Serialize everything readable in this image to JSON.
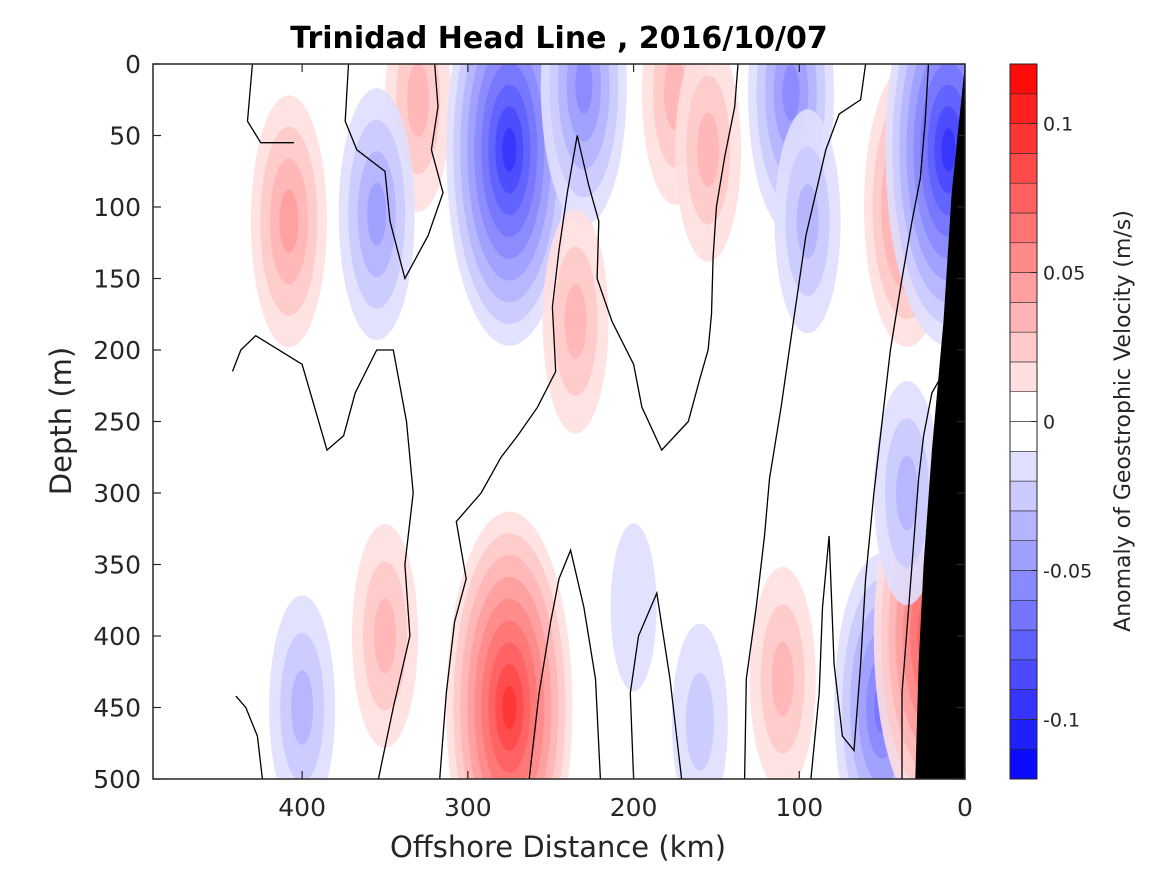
{
  "chart_data": {
    "type": "heatmap",
    "title": "Trinidad Head Line , 2016/10/07",
    "xlabel": "Offshore Distance (km)",
    "ylabel": "Depth (m)",
    "x_reversed": true,
    "y_reversed": true,
    "xlim": [
      490,
      0
    ],
    "ylim": [
      0,
      500
    ],
    "x_ticks": [
      {
        "value": 400,
        "label": "400"
      },
      {
        "value": 300,
        "label": "300"
      },
      {
        "value": 200,
        "label": "200"
      },
      {
        "value": 100,
        "label": "100"
      },
      {
        "value": 0,
        "label": "0"
      }
    ],
    "y_ticks": [
      {
        "value": 0,
        "label": "0"
      },
      {
        "value": 50,
        "label": "50"
      },
      {
        "value": 100,
        "label": "100"
      },
      {
        "value": 150,
        "label": "150"
      },
      {
        "value": 200,
        "label": "200"
      },
      {
        "value": 250,
        "label": "250"
      },
      {
        "value": 300,
        "label": "300"
      },
      {
        "value": 350,
        "label": "350"
      },
      {
        "value": 400,
        "label": "400"
      },
      {
        "value": 450,
        "label": "450"
      },
      {
        "value": 500,
        "label": "500"
      }
    ],
    "colorbar": {
      "label": "Anomaly of Geostrophic Velocity (m/s)",
      "range": [
        -0.12,
        0.12
      ],
      "level_step": 0.01,
      "zero_band": [
        -0.01,
        0.01
      ],
      "negative_color": "#0000ff",
      "positive_color": "#ff0000",
      "ticks": [
        {
          "value": 0.1,
          "label": "0.1"
        },
        {
          "value": 0.05,
          "label": "0.05"
        },
        {
          "value": 0,
          "label": "0"
        },
        {
          "value": -0.05,
          "label": "-0.05"
        },
        {
          "value": -0.1,
          "label": "-0.1"
        }
      ]
    },
    "bottom_mask_color": "#000000",
    "shelf_bottom": [
      [
        0,
        0
      ],
      [
        8,
        90
      ],
      [
        13,
        180
      ],
      [
        20,
        270
      ],
      [
        25,
        350
      ],
      [
        28,
        420
      ],
      [
        30,
        500
      ]
    ],
    "velocity_cores": [
      {
        "x": 408,
        "y": 110,
        "v": 0.04
      },
      {
        "x": 330,
        "y": 25,
        "v": 0.03
      },
      {
        "x": 355,
        "y": 105,
        "v": -0.04
      },
      {
        "x": 275,
        "y": 60,
        "v": -0.09
      },
      {
        "x": 230,
        "y": 15,
        "v": -0.05
      },
      {
        "x": 235,
        "y": 180,
        "v": 0.03
      },
      {
        "x": 175,
        "y": 20,
        "v": 0.03
      },
      {
        "x": 155,
        "y": 60,
        "v": 0.03
      },
      {
        "x": 105,
        "y": 20,
        "v": -0.05
      },
      {
        "x": 95,
        "y": 110,
        "v": -0.03
      },
      {
        "x": 35,
        "y": 100,
        "v": 0.05
      },
      {
        "x": 10,
        "y": 60,
        "v": -0.09
      },
      {
        "x": 275,
        "y": 450,
        "v": 0.09
      },
      {
        "x": 350,
        "y": 400,
        "v": 0.03
      },
      {
        "x": 400,
        "y": 450,
        "v": -0.03
      },
      {
        "x": 110,
        "y": 430,
        "v": 0.03
      },
      {
        "x": 160,
        "y": 460,
        "v": -0.02
      },
      {
        "x": 50,
        "y": 450,
        "v": -0.06
      },
      {
        "x": 20,
        "y": 400,
        "v": 0.08
      },
      {
        "x": 35,
        "y": 300,
        "v": -0.03
      },
      {
        "x": 200,
        "y": 380,
        "v": -0.015
      }
    ],
    "zero_contours": [
      [
        [
          430,
          0
        ],
        [
          433,
          40
        ],
        [
          425,
          55
        ],
        [
          405,
          55
        ]
      ],
      [
        [
          372,
          0
        ],
        [
          374,
          40
        ],
        [
          367,
          60
        ],
        [
          350,
          75
        ],
        [
          347,
          110
        ],
        [
          338,
          150
        ],
        [
          324,
          120
        ],
        [
          315,
          90
        ],
        [
          322,
          60
        ],
        [
          318,
          30
        ],
        [
          320,
          0
        ]
      ],
      [
        [
          442,
          215
        ],
        [
          437,
          200
        ],
        [
          428,
          190
        ],
        [
          400,
          210
        ],
        [
          385,
          270
        ],
        [
          375,
          260
        ],
        [
          368,
          230
        ],
        [
          355,
          200
        ],
        [
          345,
          200
        ],
        [
          337,
          250
        ],
        [
          333,
          300
        ],
        [
          338,
          350
        ],
        [
          335,
          400
        ],
        [
          345,
          450
        ],
        [
          354,
          500
        ]
      ],
      [
        [
          440,
          442
        ],
        [
          434,
          450
        ],
        [
          427,
          470
        ],
        [
          424,
          500
        ]
      ],
      [
        [
          317,
          500
        ],
        [
          313,
          440
        ],
        [
          308,
          390
        ],
        [
          301,
          360
        ],
        [
          307,
          320
        ],
        [
          292,
          300
        ],
        [
          280,
          275
        ],
        [
          270,
          260
        ],
        [
          258,
          240
        ],
        [
          247,
          215
        ],
        [
          249,
          170
        ],
        [
          245,
          130
        ],
        [
          240,
          90
        ],
        [
          234,
          50
        ],
        [
          227,
          85
        ],
        [
          221,
          110
        ],
        [
          222,
          150
        ],
        [
          213,
          180
        ],
        [
          200,
          210
        ],
        [
          195,
          240
        ],
        [
          183,
          270
        ],
        [
          167,
          250
        ],
        [
          160,
          220
        ],
        [
          155,
          200
        ],
        [
          153,
          175
        ],
        [
          152,
          135
        ],
        [
          150,
          100
        ],
        [
          145,
          65
        ],
        [
          139,
          30
        ],
        [
          137,
          0
        ]
      ],
      [
        [
          263,
          500
        ],
        [
          257,
          440
        ],
        [
          250,
          390
        ],
        [
          245,
          360
        ],
        [
          238,
          340
        ],
        [
          230,
          380
        ],
        [
          223,
          430
        ],
        [
          220,
          500
        ]
      ],
      [
        [
          200,
          500
        ],
        [
          202,
          440
        ],
        [
          197,
          400
        ],
        [
          186,
          370
        ],
        [
          178,
          430
        ],
        [
          171,
          500
        ]
      ],
      [
        [
          133,
          500
        ],
        [
          132,
          430
        ],
        [
          126,
          380
        ],
        [
          121,
          330
        ],
        [
          118,
          290
        ],
        [
          111,
          240
        ],
        [
          106,
          200
        ],
        [
          101,
          160
        ],
        [
          96,
          120
        ],
        [
          90,
          90
        ],
        [
          84,
          60
        ],
        [
          76,
          35
        ],
        [
          63,
          25
        ],
        [
          60,
          0
        ]
      ],
      [
        [
          93,
          500
        ],
        [
          88,
          440
        ],
        [
          86,
          380
        ],
        [
          82,
          330
        ],
        [
          79,
          420
        ],
        [
          74,
          470
        ],
        [
          67,
          480
        ],
        [
          63,
          420
        ],
        [
          60,
          360
        ],
        [
          55,
          300
        ],
        [
          50,
          250
        ],
        [
          45,
          200
        ],
        [
          38,
          150
        ],
        [
          32,
          110
        ],
        [
          27,
          80
        ],
        [
          24,
          40
        ],
        [
          22,
          0
        ]
      ],
      [
        [
          38,
          500
        ],
        [
          38,
          440
        ],
        [
          34,
          380
        ],
        [
          30,
          320
        ],
        [
          28,
          290
        ],
        [
          25,
          260
        ],
        [
          20,
          230
        ],
        [
          15,
          220
        ]
      ]
    ]
  }
}
